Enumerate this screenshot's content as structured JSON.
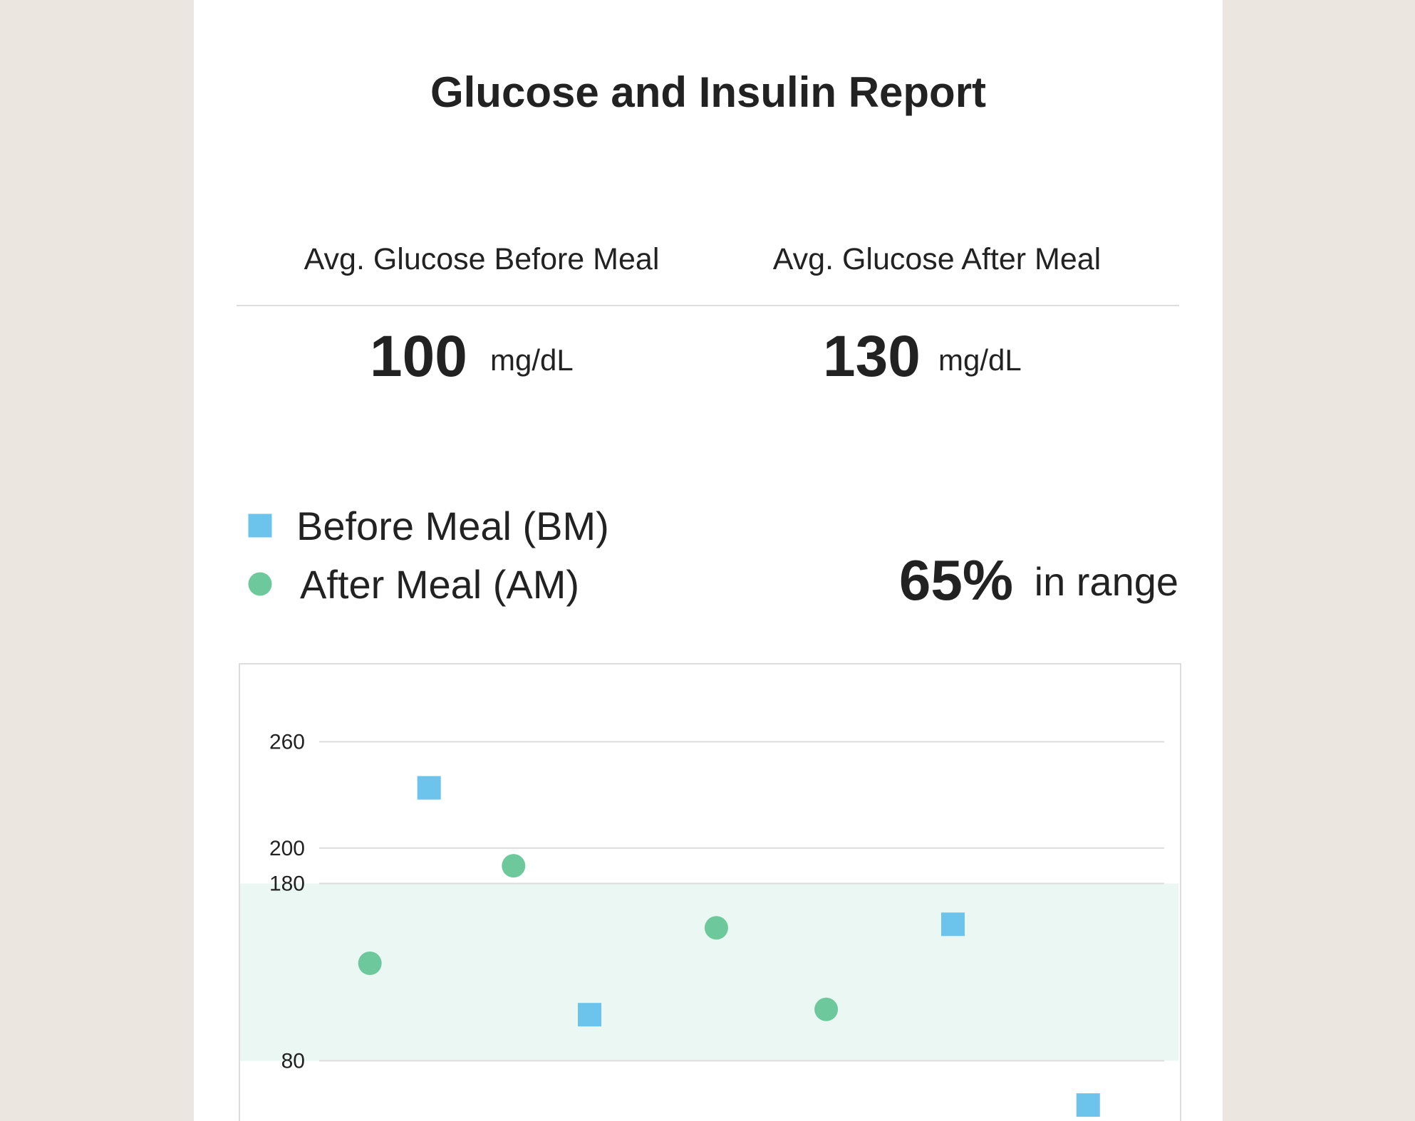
{
  "title": "Glucose and Insulin Report",
  "stats": [
    {
      "label": "Avg. Glucose Before Meal",
      "value": "100",
      "unit": "mg/dL"
    },
    {
      "label": "Avg. Glucose After Meal",
      "value": "130",
      "unit": "mg/dL"
    }
  ],
  "in_range": {
    "value": "65%",
    "text": "in range"
  },
  "chart_data": {
    "type": "scatter",
    "series": [
      {
        "name": "Before Meal (BM)",
        "color": "#6cc4ec",
        "marker": "square",
        "x": [
          13,
          32,
          75,
          91
        ],
        "values": [
          234,
          106,
          157,
          55
        ]
      },
      {
        "name": "After Meal (AM)",
        "color": "#6dc99b",
        "marker": "circle",
        "x": [
          6,
          23,
          47,
          60
        ],
        "values": [
          135,
          190,
          155,
          109
        ]
      }
    ],
    "range": [
      80,
      180
    ],
    "range_color": "#ebf7f2",
    "xlim": [
      0,
      100
    ],
    "ylim": [
      46,
      304
    ],
    "yticks": [
      80,
      180,
      200,
      260
    ],
    "grid": true
  }
}
